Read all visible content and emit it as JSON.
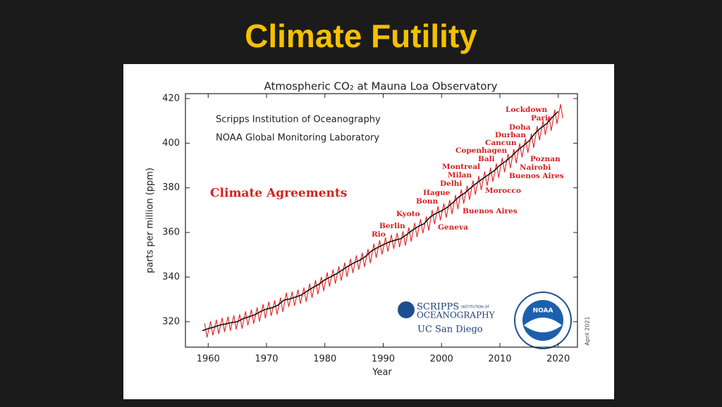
{
  "slide_title": "Climate Futility",
  "chart_data": {
    "type": "line",
    "title": "Atmospheric CO₂ at Mauna Loa Observatory",
    "credits": [
      "Scripps Institution of Oceanography",
      "NOAA Global Monitoring Laboratory"
    ],
    "highlight": "Climate Agreements",
    "x_label": "Year",
    "y_label": "parts per million (ppm)",
    "date_note": "April 2021",
    "logos": [
      "SCRIPPS",
      "INSTITUTION OF",
      "OCEANOGRAPHY",
      "UC San Diego",
      "NOAA"
    ],
    "xlim": [
      1956.1,
      2023.3
    ],
    "xticks": [
      1960,
      1970,
      1980,
      1990,
      2000,
      2010,
      2020
    ],
    "ylim": [
      308.6,
      422.2
    ],
    "yticks": [
      320,
      340,
      360,
      380,
      400,
      420
    ],
    "grid": false,
    "annotations": [
      "Lockdown",
      "Paris",
      "Doha",
      "Durban",
      "Cancun",
      "Copenhagen",
      "Bali",
      "Poznan",
      "Montreal",
      "Nairobi",
      "Milan",
      "Buenos Aires",
      "Delhi",
      "Morocco",
      "Hague",
      "Bonn",
      "Buenos Aires",
      "Kyoto",
      "Berlin",
      "Geneva",
      "Rio"
    ],
    "series": [
      {
        "color": "#e02020",
        "x": [
          1959.4,
          1959.8,
          1960.4,
          1960.8,
          1961.4,
          1961.8,
          1962.4,
          1962.8,
          1963.4,
          1963.8,
          1964.4,
          1964.8,
          1965.4,
          1965.8,
          1966.4,
          1966.8,
          1967.4,
          1967.8,
          1968.4,
          1968.8,
          1969.4,
          1969.8,
          1970.4,
          1970.8,
          1971.4,
          1971.8,
          1972.4,
          1972.8,
          1973.4,
          1973.8,
          1974.4,
          1974.8,
          1975.4,
          1975.8,
          1976.4,
          1976.8,
          1977.4,
          1977.8,
          1978.4,
          1978.8,
          1979.4,
          1979.8,
          1980.4,
          1980.8,
          1981.4,
          1981.8,
          1982.4,
          1982.8,
          1983.4,
          1983.8,
          1984.4,
          1984.8,
          1985.4,
          1985.8,
          1986.4,
          1986.8,
          1987.4,
          1987.8,
          1988.4,
          1988.8,
          1989.4,
          1989.8,
          1990.4,
          1990.8,
          1991.4,
          1991.8,
          1992.4,
          1992.8,
          1993.4,
          1993.8,
          1994.4,
          1994.8,
          1995.4,
          1995.8,
          1996.4,
          1996.8,
          1997.4,
          1997.8,
          1998.4,
          1998.8,
          1999.4,
          1999.8,
          2000.4,
          2000.8,
          2001.4,
          2001.8,
          2002.4,
          2002.8,
          2003.4,
          2003.8,
          2004.4,
          2004.8,
          2005.4,
          2005.8,
          2006.4,
          2006.8,
          2007.4,
          2007.8,
          2008.4,
          2008.8,
          2009.4,
          2009.8,
          2010.4,
          2010.8,
          2011.4,
          2011.8,
          2012.4,
          2012.8,
          2013.4,
          2013.8,
          2014.4,
          2014.8,
          2015.4,
          2015.8,
          2016.4,
          2016.8,
          2017.4,
          2017.8,
          2018.4,
          2018.8,
          2019.4,
          2019.8,
          2020.4,
          2020.8
        ],
        "values": [
          319.2,
          313.0,
          320.1,
          313.9,
          320.8,
          314.6,
          321.7,
          315.5,
          322.2,
          316.0,
          322.8,
          316.6,
          323.2,
          317.0,
          324.6,
          318.4,
          325.4,
          319.2,
          326.3,
          320.1,
          327.8,
          321.6,
          328.9,
          322.7,
          329.5,
          323.3,
          330.7,
          324.5,
          332.9,
          326.7,
          333.4,
          327.2,
          334.3,
          328.1,
          335.2,
          329.0,
          337.0,
          330.8,
          338.6,
          332.4,
          340.0,
          333.8,
          342.0,
          335.8,
          343.3,
          337.1,
          344.7,
          338.5,
          346.4,
          340.2,
          348.1,
          341.9,
          349.6,
          343.4,
          350.8,
          344.6,
          352.5,
          346.3,
          354.9,
          348.7,
          356.4,
          350.2,
          357.7,
          351.5,
          358.9,
          352.7,
          359.7,
          353.5,
          360.4,
          354.2,
          362.2,
          356.0,
          364.2,
          358.0,
          365.9,
          359.7,
          367.1,
          360.9,
          370.0,
          363.8,
          371.7,
          365.5,
          372.9,
          366.7,
          374.5,
          368.3,
          376.7,
          370.5,
          379.2,
          373.0,
          380.9,
          374.7,
          383.2,
          377.0,
          385.3,
          379.1,
          387.2,
          381.0,
          389.0,
          382.8,
          390.8,
          384.6,
          393.3,
          387.1,
          395.1,
          388.9,
          397.3,
          391.1,
          399.9,
          393.7,
          402.0,
          395.8,
          404.2,
          398.0,
          407.6,
          401.4,
          410.0,
          403.8,
          411.9,
          405.7,
          414.9,
          408.7,
          417.4,
          411.2
        ]
      },
      {
        "color": "#111111",
        "x": [
          1959,
          1960,
          1961,
          1962,
          1963,
          1964,
          1965,
          1966,
          1967,
          1968,
          1969,
          1970,
          1971,
          1972,
          1973,
          1974,
          1975,
          1976,
          1977,
          1978,
          1979,
          1980,
          1981,
          1982,
          1983,
          1984,
          1985,
          1986,
          1987,
          1988,
          1989,
          1990,
          1991,
          1992,
          1993,
          1994,
          1995,
          1996,
          1997,
          1998,
          1999,
          2000,
          2001,
          2002,
          2003,
          2004,
          2005,
          2006,
          2007,
          2008,
          2009,
          2010,
          2011,
          2012,
          2013,
          2014,
          2015,
          2016,
          2017,
          2018,
          2019,
          2020
        ],
        "values": [
          316.0,
          316.9,
          317.6,
          318.5,
          319.0,
          319.6,
          320.0,
          321.4,
          322.2,
          323.1,
          324.6,
          325.7,
          326.3,
          327.5,
          329.7,
          330.2,
          331.1,
          332.0,
          333.8,
          335.4,
          336.8,
          338.8,
          340.1,
          341.5,
          343.2,
          344.9,
          346.4,
          347.6,
          349.3,
          351.7,
          353.2,
          354.5,
          355.7,
          356.5,
          357.2,
          359.0,
          361.0,
          362.7,
          363.9,
          366.8,
          368.5,
          369.7,
          371.3,
          373.5,
          376.0,
          377.7,
          380.0,
          382.1,
          384.0,
          385.8,
          387.6,
          390.1,
          391.9,
          394.1,
          396.7,
          398.8,
          401.0,
          404.4,
          406.8,
          408.7,
          411.7,
          414.2
        ]
      }
    ]
  }
}
